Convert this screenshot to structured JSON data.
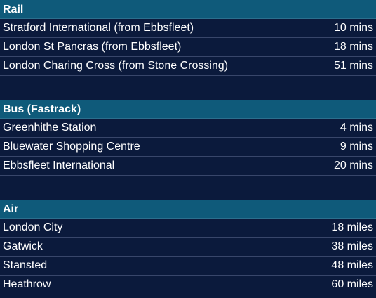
{
  "sections": [
    {
      "title": "Rail",
      "rows": [
        {
          "label": "Stratford International (from Ebbsfleet)",
          "value": "10 mins"
        },
        {
          "label": "London St Pancras (from Ebbsfleet)",
          "value": "18 mins"
        },
        {
          "label": "London Charing Cross (from Stone Crossing)",
          "value": "51 mins"
        }
      ]
    },
    {
      "title": "Bus (Fastrack)",
      "rows": [
        {
          "label": "Greenhithe Station",
          "value": "4 mins"
        },
        {
          "label": "Bluewater Shopping Centre",
          "value": "9 mins"
        },
        {
          "label": "Ebbsfleet International",
          "value": "20 mins"
        }
      ]
    },
    {
      "title": "Air",
      "rows": [
        {
          "label": "London City",
          "value": "18 miles"
        },
        {
          "label": "Gatwick",
          "value": "38 miles"
        },
        {
          "label": "Stansted",
          "value": "48 miles"
        },
        {
          "label": "Heathrow",
          "value": "60 miles"
        }
      ]
    }
  ]
}
